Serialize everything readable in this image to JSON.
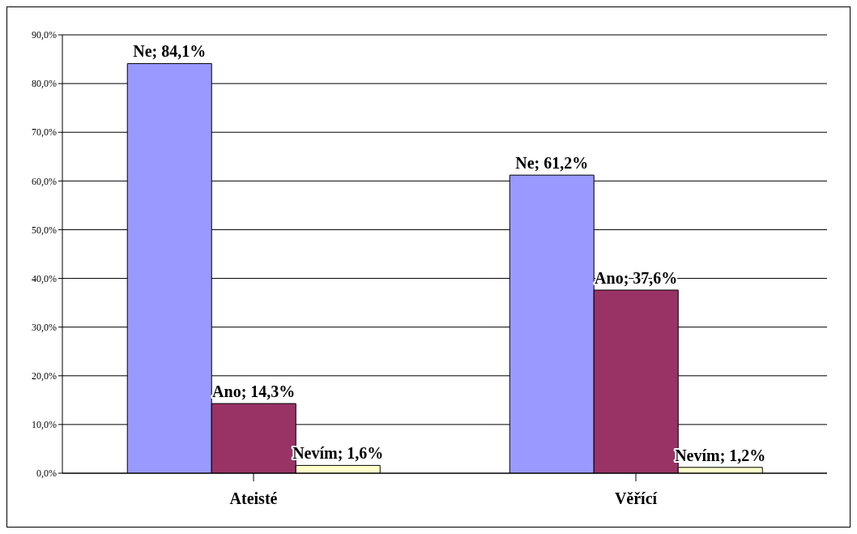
{
  "chart_data": {
    "type": "bar",
    "categories": [
      "Ateisté",
      "Věřící"
    ],
    "series": [
      {
        "color": "#9999ff",
        "values": [
          84.1,
          61.2
        ],
        "value_labels": [
          "Ne; 84,1%",
          "Ne; 61,2%"
        ]
      },
      {
        "color": "#993366",
        "values": [
          14.3,
          37.6
        ],
        "value_labels": [
          "Ano; 14,3%",
          "Ano; 37,6%"
        ]
      },
      {
        "color": "#ffffcc",
        "values": [
          1.6,
          1.2
        ],
        "value_labels": [
          "Nevím; 1,6%",
          "Nevím; 1,2%"
        ]
      }
    ],
    "ylim": [
      0,
      90
    ],
    "yticks": [
      {
        "value": 0,
        "label": "0,0%"
      },
      {
        "value": 10,
        "label": "10,0%"
      },
      {
        "value": 20,
        "label": "20,0%"
      },
      {
        "value": 30,
        "label": "30,0%"
      },
      {
        "value": 40,
        "label": "40,0%"
      },
      {
        "value": 50,
        "label": "50,0%"
      },
      {
        "value": 60,
        "label": "60,0%"
      },
      {
        "value": 70,
        "label": "70,0%"
      },
      {
        "value": 80,
        "label": "80,0%"
      },
      {
        "value": 90,
        "label": "90,0%"
      }
    ],
    "grid": "y",
    "legend": false
  }
}
